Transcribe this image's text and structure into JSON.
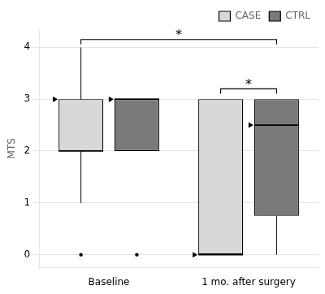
{
  "chart_data": {
    "type": "box",
    "ylabel": "MTS",
    "categories": [
      "Baseline",
      "1 mo. after surgery"
    ],
    "series": [
      {
        "name": "CASE",
        "color": "#d8d8d8",
        "boxes": [
          {
            "q1": 2.0,
            "median": 2.0,
            "q3": 3.0,
            "whislo": 1.0,
            "whishi": 4.0,
            "fliers": [
              0.0
            ],
            "mean": 3.0
          },
          {
            "q1": 0.0,
            "median": 0.0,
            "q3": 3.0,
            "whislo": 0.0,
            "whishi": 3.0,
            "fliers": [],
            "mean": 0.0
          }
        ]
      },
      {
        "name": "CTRL",
        "color": "#797979",
        "boxes": [
          {
            "q1": 2.0,
            "median": 3.0,
            "q3": 3.0,
            "whislo": 2.0,
            "whishi": 3.0,
            "fliers": [
              0.0
            ],
            "mean": 3.0
          },
          {
            "q1": 0.75,
            "median": 2.5,
            "q3": 3.0,
            "whislo": 0.0,
            "whishi": 3.0,
            "fliers": [],
            "mean": 2.5
          }
        ]
      }
    ],
    "annotations": [
      {
        "text": "*",
        "y": 4.15,
        "from": {
          "category": "Baseline",
          "series": "CASE"
        },
        "to": {
          "category": "1 mo. after surgery",
          "series": "CTRL"
        }
      },
      {
        "text": "*",
        "y": 3.2,
        "from": {
          "category": "1 mo. after surgery",
          "series": "CASE"
        },
        "to": {
          "category": "1 mo. after surgery",
          "series": "CTRL"
        }
      }
    ],
    "ylim": [
      -0.25,
      4.35
    ],
    "yticks": [
      0,
      1,
      2,
      3,
      4
    ],
    "grid": true,
    "legend": "upper right"
  }
}
